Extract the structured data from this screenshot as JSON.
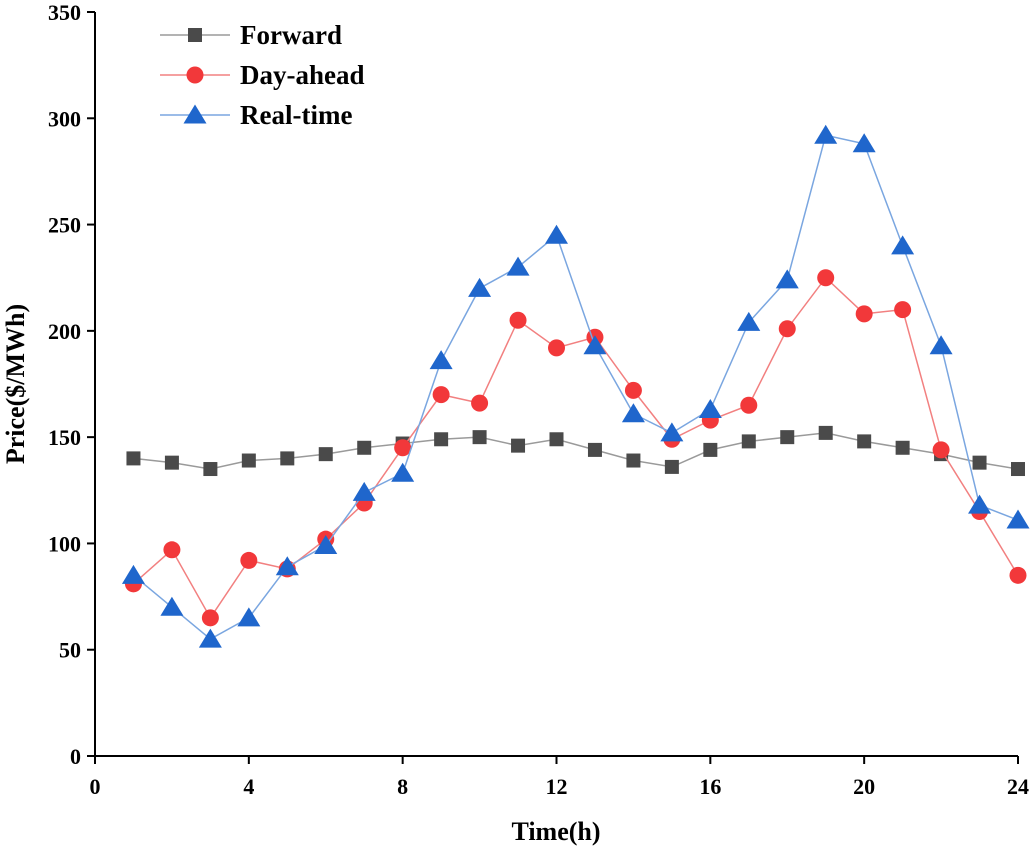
{
  "chart_data": {
    "type": "line",
    "title": "",
    "xlabel": "Time(h)",
    "ylabel": "Price($/MWh)",
    "xlim": [
      0,
      24
    ],
    "ylim": [
      0,
      350
    ],
    "xticks": [
      0,
      4,
      8,
      12,
      16,
      20,
      24
    ],
    "yticks": [
      0,
      50,
      100,
      150,
      200,
      250,
      300,
      350
    ],
    "grid": false,
    "legend_position": "top-left",
    "x": [
      1,
      2,
      3,
      4,
      5,
      6,
      7,
      8,
      9,
      10,
      11,
      12,
      13,
      14,
      15,
      16,
      17,
      18,
      19,
      20,
      21,
      22,
      23,
      24
    ],
    "series": [
      {
        "name": "Forward",
        "marker": "square",
        "color": "#4a4a4a",
        "line_color": "#9a9a9a",
        "values": [
          140,
          138,
          135,
          139,
          140,
          142,
          145,
          147,
          149,
          150,
          146,
          149,
          144,
          139,
          136,
          144,
          148,
          150,
          152,
          148,
          145,
          142,
          138,
          135
        ]
      },
      {
        "name": "Day-ahead",
        "marker": "circle",
        "color": "#f2383a",
        "line_color": "#f28080",
        "values": [
          81,
          97,
          65,
          92,
          88,
          102,
          119,
          145,
          170,
          166,
          205,
          192,
          197,
          172,
          149,
          158,
          165,
          201,
          225,
          208,
          210,
          144,
          115,
          85
        ]
      },
      {
        "name": "Real-time",
        "marker": "triangle",
        "color": "#1f66cc",
        "line_color": "#7aa6e0",
        "values": [
          85,
          70,
          55,
          65,
          89,
          99,
          124,
          133,
          186,
          220,
          230,
          245,
          193,
          161,
          152,
          163,
          204,
          224,
          292,
          288,
          240,
          193,
          118,
          111
        ]
      }
    ]
  }
}
